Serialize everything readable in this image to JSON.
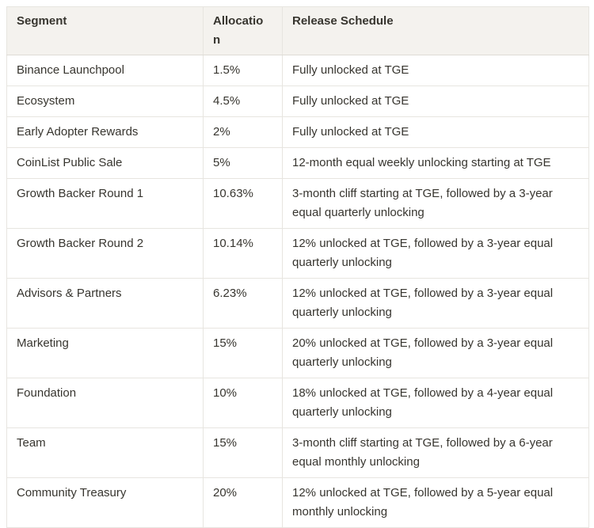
{
  "colors": {
    "page_bg": "#ffffff",
    "header_bg": "#f4f2ee",
    "border": "#e7e5e0",
    "text": "#37352f"
  },
  "table": {
    "columns": [
      {
        "key": "segment",
        "label": "Segment"
      },
      {
        "key": "allocation",
        "label": "Allocation"
      },
      {
        "key": "release",
        "label": "Release Schedule"
      }
    ],
    "rows": [
      {
        "segment": "Binance Launchpool",
        "allocation": "1.5%",
        "release": "Fully unlocked at TGE"
      },
      {
        "segment": "Ecosystem",
        "allocation": "4.5%",
        "release": "Fully unlocked at TGE"
      },
      {
        "segment": "Early Adopter Rewards",
        "allocation": "2%",
        "release": "Fully unlocked at TGE"
      },
      {
        "segment": "CoinList Public Sale",
        "allocation": "5%",
        "release": "12-month equal weekly unlocking starting at TGE"
      },
      {
        "segment": "Growth Backer Round 1",
        "allocation": "10.63%",
        "release": "3-month cliff starting at TGE, followed by a 3-year equal quarterly unlocking"
      },
      {
        "segment": "Growth Backer Round 2",
        "allocation": "10.14%",
        "release": "12% unlocked at TGE, followed by a 3-year equal quarterly unlocking"
      },
      {
        "segment": "Advisors & Partners",
        "allocation": "6.23%",
        "release": "12% unlocked at TGE, followed by a 3-year equal quarterly unlocking"
      },
      {
        "segment": "Marketing",
        "allocation": "15%",
        "release": "20% unlocked at TGE, followed by a 3-year equal quarterly unlocking"
      },
      {
        "segment": "Foundation",
        "allocation": "10%",
        "release": "18% unlocked at TGE, followed by a 4-year equal quarterly unlocking"
      },
      {
        "segment": "Team",
        "allocation": "15%",
        "release": "3-month cliff starting at TGE, followed by a 6-year equal monthly unlocking"
      },
      {
        "segment": "Community Treasury",
        "allocation": "20%",
        "release": "12% unlocked at TGE, followed by a 5-year equal monthly unlocking"
      }
    ]
  }
}
